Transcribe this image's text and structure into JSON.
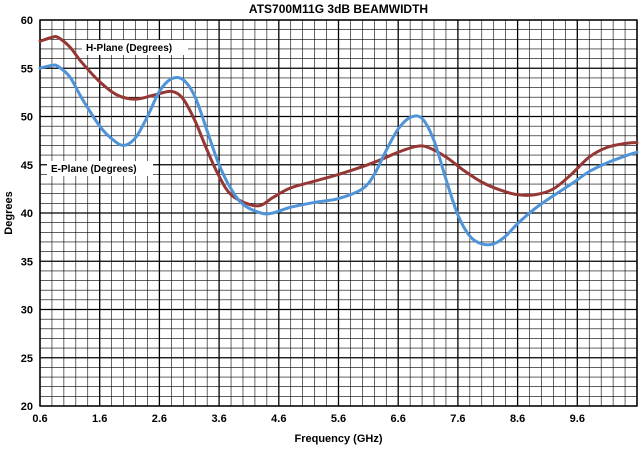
{
  "chart_data": {
    "type": "line",
    "title": "ATS700M11G 3dB BEAMWIDTH",
    "xlabel": "Frequency (GHz)",
    "ylabel": "Degrees",
    "xlim": [
      0.6,
      10.6
    ],
    "ylim": [
      20,
      60
    ],
    "x_ticks": [
      "0.6",
      "1.6",
      "2.6",
      "3.6",
      "4.6",
      "5.6",
      "6.6",
      "7.6",
      "8.6",
      "9.6"
    ],
    "y_ticks": [
      "20",
      "25",
      "30",
      "35",
      "40",
      "45",
      "50",
      "55",
      "60"
    ],
    "grid": true,
    "series": [
      {
        "name": "H-Plane (Degrees)",
        "color": "#953735",
        "points": [
          [
            0.6,
            57.8
          ],
          [
            0.8,
            58.2
          ],
          [
            0.9,
            58.2
          ],
          [
            1.1,
            57.2
          ],
          [
            1.3,
            55.6
          ],
          [
            1.6,
            53.6
          ],
          [
            1.9,
            52.2
          ],
          [
            2.2,
            51.8
          ],
          [
            2.5,
            52.2
          ],
          [
            2.8,
            52.6
          ],
          [
            3.0,
            51.8
          ],
          [
            3.2,
            49.5
          ],
          [
            3.4,
            46.5
          ],
          [
            3.6,
            43.8
          ],
          [
            3.8,
            41.9
          ],
          [
            4.1,
            40.9
          ],
          [
            4.3,
            40.8
          ],
          [
            4.5,
            41.6
          ],
          [
            4.8,
            42.6
          ],
          [
            5.2,
            43.3
          ],
          [
            5.6,
            44.0
          ],
          [
            6.0,
            44.8
          ],
          [
            6.3,
            45.5
          ],
          [
            6.6,
            46.3
          ],
          [
            6.9,
            46.9
          ],
          [
            7.1,
            46.8
          ],
          [
            7.4,
            45.8
          ],
          [
            7.7,
            44.4
          ],
          [
            8.0,
            43.2
          ],
          [
            8.3,
            42.4
          ],
          [
            8.6,
            41.9
          ],
          [
            8.9,
            41.9
          ],
          [
            9.2,
            42.5
          ],
          [
            9.5,
            44.0
          ],
          [
            9.8,
            45.8
          ],
          [
            10.1,
            46.8
          ],
          [
            10.4,
            47.2
          ],
          [
            10.6,
            47.3
          ]
        ]
      },
      {
        "name": "E-Plane (Degrees)",
        "color": "#4f94d9",
        "points": [
          [
            0.6,
            55.0
          ],
          [
            0.8,
            55.3
          ],
          [
            0.9,
            55.2
          ],
          [
            1.1,
            54.1
          ],
          [
            1.3,
            51.9
          ],
          [
            1.6,
            49.0
          ],
          [
            1.8,
            47.7
          ],
          [
            2.0,
            47.0
          ],
          [
            2.2,
            47.8
          ],
          [
            2.4,
            50.0
          ],
          [
            2.6,
            52.6
          ],
          [
            2.8,
            53.9
          ],
          [
            3.0,
            53.8
          ],
          [
            3.2,
            52.0
          ],
          [
            3.4,
            48.5
          ],
          [
            3.6,
            45.0
          ],
          [
            3.8,
            42.5
          ],
          [
            4.0,
            40.9
          ],
          [
            4.3,
            40.0
          ],
          [
            4.5,
            40.0
          ],
          [
            4.8,
            40.6
          ],
          [
            5.2,
            41.1
          ],
          [
            5.6,
            41.5
          ],
          [
            6.0,
            42.5
          ],
          [
            6.2,
            44.0
          ],
          [
            6.4,
            46.5
          ],
          [
            6.6,
            48.7
          ],
          [
            6.8,
            49.9
          ],
          [
            7.0,
            49.8
          ],
          [
            7.2,
            47.5
          ],
          [
            7.4,
            43.5
          ],
          [
            7.6,
            39.8
          ],
          [
            7.8,
            37.6
          ],
          [
            8.0,
            36.8
          ],
          [
            8.2,
            36.8
          ],
          [
            8.4,
            37.6
          ],
          [
            8.6,
            38.9
          ],
          [
            8.9,
            40.5
          ],
          [
            9.2,
            41.8
          ],
          [
            9.5,
            43.0
          ],
          [
            9.8,
            44.3
          ],
          [
            10.1,
            45.2
          ],
          [
            10.4,
            45.9
          ],
          [
            10.6,
            46.3
          ]
        ]
      }
    ],
    "legend_labels": [
      "H-Plane (Degrees)",
      "E-Plane (Degrees)"
    ]
  }
}
